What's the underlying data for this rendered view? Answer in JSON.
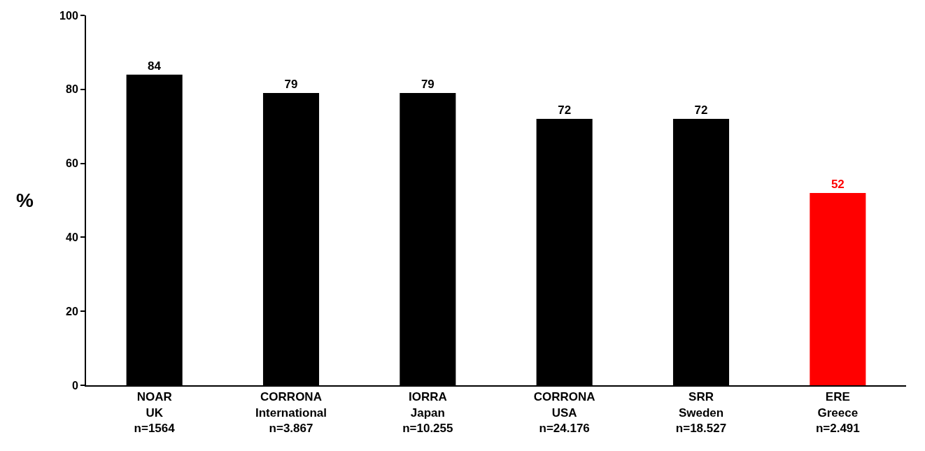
{
  "chart_data": {
    "type": "bar",
    "ylabel": "%",
    "categories": [
      "NOAR\nUK\nn=1564",
      "CORRONA\nInternational\nn=3.867",
      "IORRA\nJapan\nn=10.255",
      "CORRONA\nUSA\nn=24.176",
      "SRR\nSweden\nn=18.527",
      "ERE\nGreece\nn=2.491"
    ],
    "values": [
      84,
      79,
      79,
      72,
      72,
      52
    ],
    "colors": [
      "#000000",
      "#000000",
      "#000000",
      "#000000",
      "#000000",
      "#ff0000"
    ],
    "ylim": [
      0,
      100
    ],
    "yticks": [
      0,
      20,
      40,
      60,
      80,
      100
    ],
    "data_labels": true
  }
}
